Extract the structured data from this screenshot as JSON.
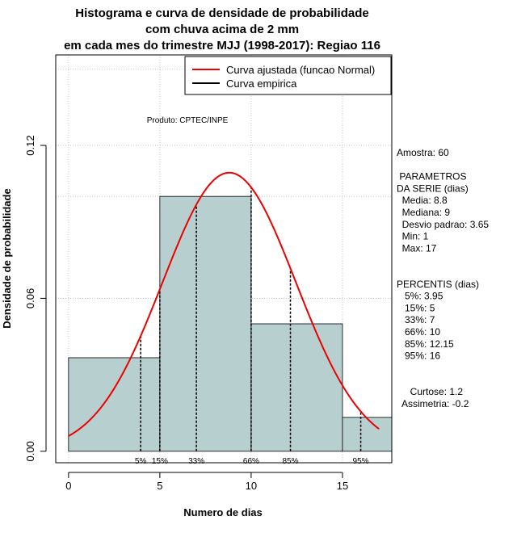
{
  "chart_data": {
    "type": "bar",
    "title_lines": [
      "Histograma e curva de densidade de probabilidade",
      "com chuva acima de 2 mm",
      "em cada mes do trimestre MJJ (1998-2017): Regiao 116"
    ],
    "xlabel": "Numero de dias",
    "ylabel": "Densidade de probabilidade",
    "xlim": [
      -0.7,
      17.7
    ],
    "ylim": [
      -0.0045,
      0.1555
    ],
    "x_ticks": [
      0,
      5,
      10,
      15
    ],
    "x_tick_labels": [
      "0",
      "5",
      "10",
      "15"
    ],
    "y_ticks": [
      0.0,
      0.06,
      0.12
    ],
    "y_tick_labels": [
      "0.00",
      "0.06",
      "0.12"
    ],
    "bins": [
      {
        "start": 0,
        "end": 5,
        "density": 0.0367
      },
      {
        "start": 5,
        "end": 10,
        "density": 0.1
      },
      {
        "start": 10,
        "end": 15,
        "density": 0.05
      },
      {
        "start": 15,
        "end": 17.7,
        "density": 0.0133
      }
    ],
    "bar_color": "#b7cfcf",
    "grid_y": [
      0.06,
      0.1,
      0.12,
      0.15
    ],
    "grid_x": [
      0,
      5,
      10,
      15
    ],
    "normal_curve": {
      "name": "Curva ajustada (funcao Normal)",
      "color": "#ee0000",
      "mean": 8.8,
      "sd": 3.65,
      "x_from": 0,
      "x_to": 17
    },
    "empirical_legend": {
      "name": "Curva empirica",
      "color": "#000000"
    },
    "legend_position": "top-right",
    "percentiles": [
      {
        "label": "5%",
        "x": 3.95
      },
      {
        "label": "15%",
        "x": 5
      },
      {
        "label": "33%",
        "x": 7
      },
      {
        "label": "66%",
        "x": 10
      },
      {
        "label": "85%",
        "x": 12.15
      },
      {
        "label": "95%",
        "x": 16
      }
    ],
    "annotation": "Produto: CPTEC/INPE"
  },
  "stats_panel": {
    "lines": [
      "Amostra: 60",
      "",
      " PARAMETROS",
      "DA SERIE (dias)",
      "  Media: 8.8",
      "  Mediana: 9",
      "  Desvio padrao: 3.65",
      "  Min: 1",
      "  Max: 17",
      "",
      "",
      "PERCENTIS (dias)",
      "   5%: 3.95",
      "   15%: 5",
      "   33%: 7",
      "   66%: 10",
      "   85%: 12.15",
      "   95%: 16",
      "",
      "",
      "     Curtose: 1.2",
      "  Assimetria: -0.2"
    ]
  }
}
